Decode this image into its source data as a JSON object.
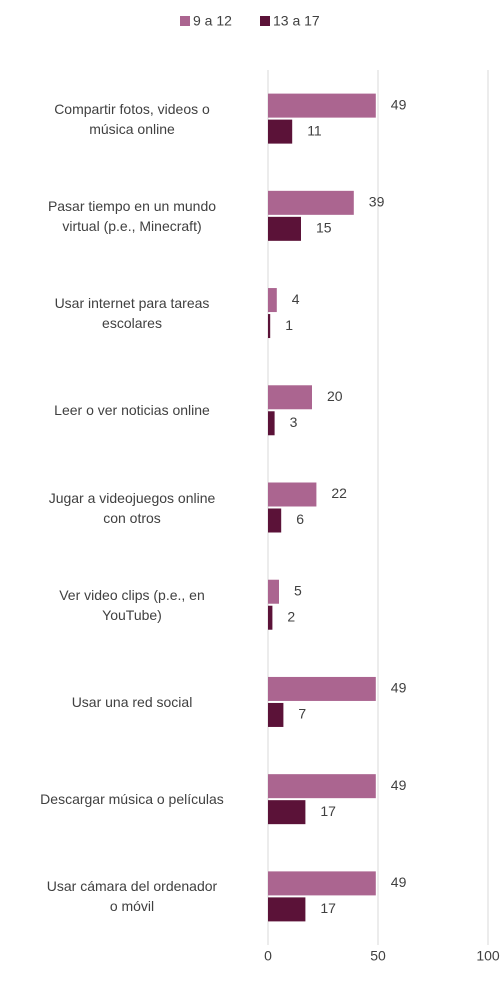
{
  "chart_data": {
    "type": "hbar",
    "categories": [
      "Compartir fotos, videos o\nmúsica online",
      "Pasar tiempo en un mundo\nvirtual (p.e., Minecraft)",
      "Usar internet para tareas\nescolares",
      "Leer o ver noticias online",
      "Jugar a videojuegos online\ncon otros",
      "Ver video clips (p.e., en\nYouTube)",
      "Usar una red social",
      "Descargar música o películas",
      "Usar cámara del ordenador\no móvil"
    ],
    "series": [
      {
        "name": "9 a 12",
        "color": "#ab6590",
        "values": [
          49,
          39,
          4,
          20,
          22,
          5,
          49,
          49,
          49
        ]
      },
      {
        "name": "13 a 17",
        "color": "#5b1238",
        "values": [
          11,
          15,
          1,
          3,
          6,
          2,
          7,
          17,
          17
        ]
      }
    ],
    "xlim": [
      0,
      100
    ],
    "xticks": [
      0,
      50,
      100
    ],
    "grid": true,
    "legend": "top"
  }
}
